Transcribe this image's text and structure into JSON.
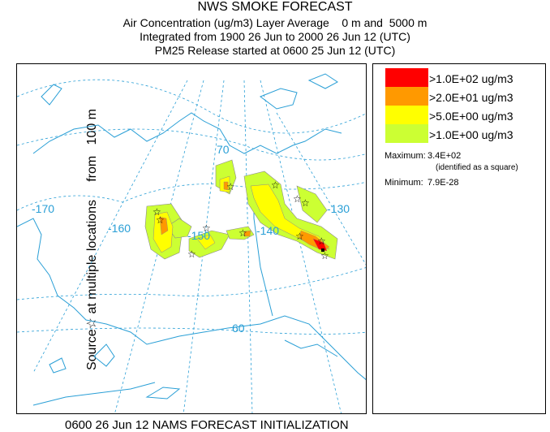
{
  "header": {
    "title": "NWS SMOKE FORECAST",
    "line2": "Air Concentration (ug/m3) Layer Average    0 m and  5000 m",
    "line3": "Integrated from 1900 26 Jun to 2000 26 Jun 12 (UTC)",
    "line4": "PM25 Release started at 0600 25 Jun 12 (UTC)"
  },
  "side_label": "Source☆ at multiple locations     from   100 m",
  "footer": "0600 26 Jun 12 NAMS FORECAST INITIALIZATION",
  "map": {
    "grid_labels": [
      "-170",
      "-160",
      "-150",
      "-140",
      "-130",
      "70",
      "60"
    ],
    "colors": {
      "coast": "#2a9fd6",
      "grid": "#2a9fd6",
      "border": "#2a9fd6"
    }
  },
  "legend": {
    "levels": [
      {
        "label": ">1.0E+02 ug/m3",
        "color": "#ff0000"
      },
      {
        "label": ">2.0E+01 ug/m3",
        "color": "#ff9900"
      },
      {
        "label": ">5.0E+00 ug/m3",
        "color": "#ffff00"
      },
      {
        "label": ">1.0E+00 ug/m3",
        "color": "#ccff33"
      }
    ],
    "maximum_label": "Maximum:",
    "maximum_value": "3.4E+02",
    "maximum_note": "(identified as a square)",
    "minimum_label": "Minimum:",
    "minimum_value": "7.9E-28"
  }
}
